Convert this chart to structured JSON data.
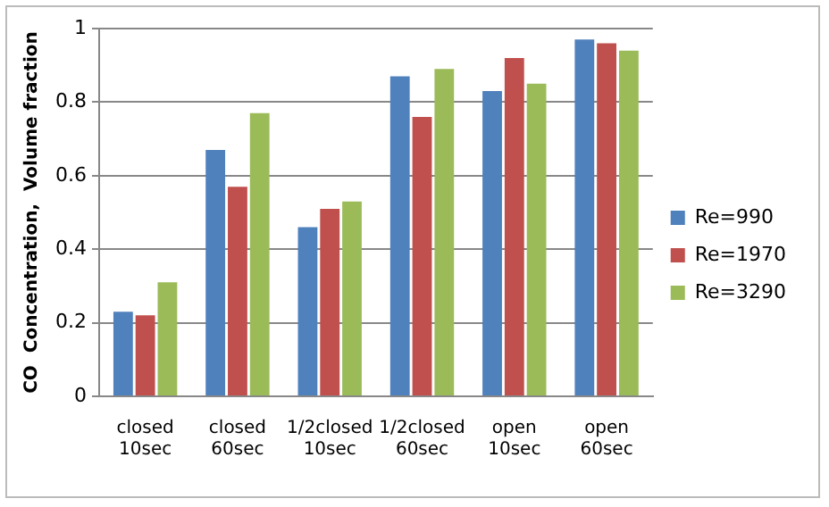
{
  "chart_data": {
    "type": "bar",
    "ylabel": "CO  Concentration,  Volume fraction",
    "categories": [
      "closed 10sec",
      "closed 60sec",
      "1/2closed 10sec",
      "1/2closed 60sec",
      "open 10sec",
      "open 60sec"
    ],
    "series": [
      {
        "name": "Re=990",
        "color": "#4f81bd",
        "values": [
          0.23,
          0.67,
          0.46,
          0.87,
          0.83,
          0.97
        ]
      },
      {
        "name": "Re=1970",
        "color": "#c0504d",
        "values": [
          0.22,
          0.57,
          0.51,
          0.76,
          0.92,
          0.96
        ]
      },
      {
        "name": "Re=3290",
        "color": "#9bbb59",
        "values": [
          0.31,
          0.77,
          0.53,
          0.89,
          0.85,
          0.94
        ]
      }
    ],
    "ylim": [
      0,
      1
    ],
    "yticks": [
      0,
      0.2,
      0.4,
      0.6,
      0.8,
      1
    ],
    "grid": "y",
    "legend": "right"
  }
}
